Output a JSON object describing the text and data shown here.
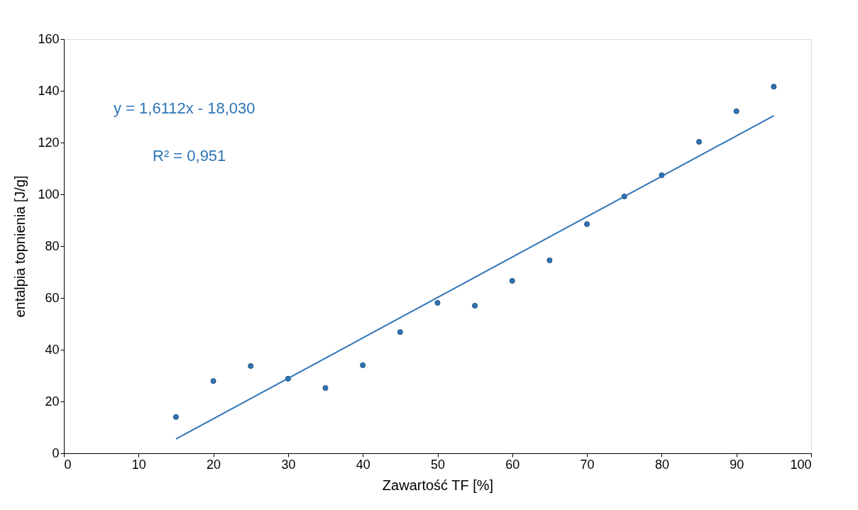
{
  "chart_data": {
    "type": "scatter",
    "xlabel": "Zawartość TF [%]",
    "ylabel": "entalpia topnienia [J/g]",
    "xlim": [
      0,
      100
    ],
    "xticks": [
      0,
      10,
      20,
      30,
      40,
      50,
      60,
      70,
      80,
      90,
      100
    ],
    "ylim": [
      0,
      160
    ],
    "yticks": [
      0,
      20,
      40,
      60,
      80,
      100,
      120,
      140,
      160
    ],
    "grid": false,
    "marker": "circle",
    "annotations": [
      "y = 1,6112x - 18,030",
      "R² = 0,951"
    ],
    "series": [
      {
        "color": "#2e75b6",
        "x": [
          15,
          20,
          25,
          30,
          35,
          40,
          45,
          50,
          55,
          60,
          65,
          70,
          75,
          80,
          85,
          90,
          95
        ],
        "values": [
          14.0,
          27.9,
          33.7,
          28.8,
          25.2,
          34.0,
          46.8,
          58.1,
          57.0,
          66.6,
          74.5,
          88.5,
          99.2,
          107.4,
          120.3,
          132.1,
          141.6
        ]
      },
      {
        "type": "line",
        "color": "#2e75b6",
        "line_style": "solid",
        "marker": "none",
        "x": [
          15,
          95
        ],
        "values": [
          5.5,
          130.4
        ]
      }
    ]
  }
}
